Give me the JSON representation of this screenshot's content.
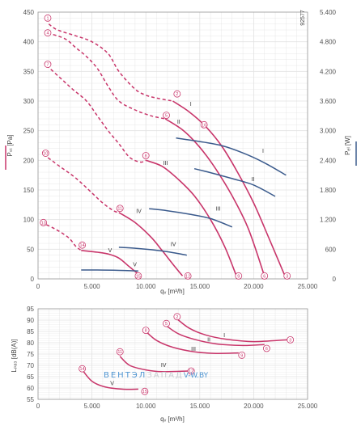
{
  "colors": {
    "pressure": "#c8356a",
    "power": "#3a5a8c",
    "grid": "#e2e2e2",
    "axis": "#999999"
  },
  "watermark": {
    "part1": "ВЕНТЭЛ",
    "part2": "ЗАПАД",
    "part3": "V-W.BY"
  },
  "chart_data": [
    {
      "type": "line",
      "code": "92577",
      "xlabel": "qᵥ [m³/h]",
      "ylabel": "Pₛₜ [Pa]",
      "y2label": "Pₑₗ [W]",
      "xlim": [
        0,
        25000
      ],
      "ylim": [
        0,
        450
      ],
      "y2lim": [
        0,
        5400
      ],
      "x_ticks": [
        0,
        5000,
        10000,
        15000,
        20000,
        25000
      ],
      "x_tick_labels": [
        "0",
        "5.000",
        "10.000",
        "15.000",
        "20.000",
        "25.000"
      ],
      "y_ticks": [
        0,
        50,
        100,
        150,
        200,
        250,
        300,
        350,
        400,
        450
      ],
      "y_tick_labels": [
        "0",
        "50",
        "100",
        "150",
        "200",
        "250",
        "300",
        "350",
        "400",
        "450"
      ],
      "y2_ticks": [
        0,
        600,
        1200,
        1800,
        2400,
        3000,
        3600,
        4200,
        4800,
        5400
      ],
      "y2_tick_labels": [
        "0",
        "600",
        "1.200",
        "1.800",
        "2.400",
        "3.000",
        "3.600",
        "4.200",
        "4.800",
        "5.400"
      ],
      "pressure_series": [
        {
          "name": "I",
          "unstable": {
            "x": [
              1000,
              1800,
              3500,
              5000,
              6500,
              7500,
              9000,
              10000,
              11000,
              12500
            ],
            "y": [
              430,
              420,
              410,
              400,
              380,
              350,
              320,
              310,
              305,
              300
            ]
          },
          "stable": {
            "x": [
              12500,
              14000,
              15500,
              17000,
              18500,
              20000,
              21500,
              22900
            ],
            "y": [
              300,
              282,
              258,
              225,
              180,
              128,
              65,
              5
            ]
          }
        },
        {
          "name": "II",
          "unstable": {
            "x": [
              900,
              2500,
              3500,
              4500,
              5500,
              6500,
              7500,
              9000,
              10500,
              11800
            ],
            "y": [
              415,
              405,
              390,
              375,
              355,
              325,
              300,
              285,
              275,
              270
            ]
          },
          "stable": {
            "x": [
              11800,
              13500,
              15000,
              16500,
              18000,
              19500,
              21000
            ],
            "y": [
              270,
              250,
              222,
              185,
              140,
              85,
              5
            ]
          }
        },
        {
          "name": "III",
          "unstable": {
            "x": [
              800,
              2000,
              3200,
              4500,
              5500,
              6500,
              7500,
              8500,
              9500,
              10000
            ],
            "y": [
              360,
              340,
              320,
              300,
              275,
              250,
              228,
              205,
              197,
              200
            ]
          },
          "stable": {
            "x": [
              10000,
              11500,
              13000,
              14500,
              16000,
              17300,
              18400
            ],
            "y": [
              200,
              190,
              168,
              140,
              100,
              55,
              5
            ]
          }
        },
        {
          "name": "IV",
          "unstable": {
            "x": [
              500,
              2000,
              3500,
              5000,
              6000,
              7000,
              7500
            ],
            "y": [
              210,
              190,
              170,
              145,
              128,
              115,
              112
            ]
          },
          "stable": {
            "x": [
              7500,
              9000,
              10500,
              11500,
              12500,
              13400
            ],
            "y": [
              112,
              95,
              70,
              48,
              25,
              5
            ]
          }
        },
        {
          "name": "V",
          "unstable": {
            "x": [
              300,
              1500,
              2800,
              3500,
              4000
            ],
            "y": [
              95,
              85,
              70,
              55,
              48
            ]
          },
          "stable": {
            "x": [
              4000,
              5500,
              6500,
              7500,
              8500,
              9500
            ],
            "y": [
              48,
              45,
              42,
              35,
              20,
              5
            ]
          }
        }
      ],
      "power_series": [
        {
          "name": "I",
          "x": [
            12800,
            15000,
            17000,
            19000,
            21000,
            23000
          ],
          "y": [
            2850,
            2780,
            2700,
            2550,
            2350,
            2100
          ]
        },
        {
          "name": "II",
          "x": [
            14500,
            16000,
            18000,
            20000,
            22000
          ],
          "y": [
            2230,
            2150,
            2030,
            1900,
            1670
          ]
        },
        {
          "name": "III",
          "x": [
            10300,
            12000,
            14000,
            16000,
            18000
          ],
          "y": [
            1420,
            1380,
            1310,
            1220,
            1050
          ]
        },
        {
          "name": "IV",
          "x": [
            7500,
            9000,
            10500,
            12000,
            13800
          ],
          "y": [
            640,
            620,
            590,
            550,
            480
          ]
        },
        {
          "name": "V",
          "x": [
            4000,
            5500,
            7000,
            8000,
            9300
          ],
          "y": [
            180,
            180,
            175,
            170,
            160
          ]
        }
      ],
      "pressure_curve_labels": [
        {
          "text": "I",
          "x": 14100,
          "y": 292
        },
        {
          "text": "II",
          "x": 12900,
          "y": 262
        },
        {
          "text": "III",
          "x": 11600,
          "y": 192
        },
        {
          "text": "IV",
          "x": 9100,
          "y": 111
        },
        {
          "text": "V",
          "x": 6500,
          "y": 45
        }
      ],
      "power_curve_labels": [
        {
          "text": "I",
          "x": 20800,
          "y": 2550
        },
        {
          "text": "II",
          "x": 19800,
          "y": 1980
        },
        {
          "text": "III",
          "x": 16500,
          "y": 1380
        },
        {
          "text": "IV",
          "x": 12300,
          "y": 660
        },
        {
          "text": "V",
          "x": 8800,
          "y": 250
        }
      ],
      "operating_points": [
        {
          "label": "1",
          "x": 900,
          "y": 440
        },
        {
          "label": "2",
          "x": 12900,
          "y": 312
        },
        {
          "label": "3",
          "x": 23100,
          "y": 5
        },
        {
          "label": "4",
          "x": 900,
          "y": 415
        },
        {
          "label": "5",
          "x": 11900,
          "y": 276
        },
        {
          "label": "6",
          "x": 21000,
          "y": 5
        },
        {
          "label": "7",
          "x": 900,
          "y": 362
        },
        {
          "label": "8",
          "x": 10000,
          "y": 208
        },
        {
          "label": "9",
          "x": 18600,
          "y": 5
        },
        {
          "label": "10",
          "x": 700,
          "y": 212
        },
        {
          "label": "11",
          "x": 7600,
          "y": 119
        },
        {
          "label": "12",
          "x": 13900,
          "y": 5
        },
        {
          "label": "13",
          "x": 500,
          "y": 95
        },
        {
          "label": "14",
          "x": 4100,
          "y": 57
        },
        {
          "label": "15",
          "x": 9300,
          "y": 5
        },
        {
          "label": "16",
          "x": 15400,
          "y": 260
        }
      ]
    },
    {
      "type": "line",
      "xlabel": "qᵥ [m³/h]",
      "ylabel": "Lₚₐ₃ [dB(A)]",
      "xlim": [
        0,
        25000
      ],
      "ylim": [
        55,
        95
      ],
      "x_ticks": [
        0,
        5000,
        10000,
        15000,
        20000,
        25000
      ],
      "x_tick_labels": [
        "0",
        "5.000",
        "10.000",
        "15.000",
        "20.000",
        "25.000"
      ],
      "y_ticks": [
        55,
        60,
        65,
        70,
        75,
        80,
        85,
        90,
        95
      ],
      "y_tick_labels": [
        "55",
        "60",
        "65",
        "70",
        "75",
        "80",
        "85",
        "90",
        "95"
      ],
      "series": [
        {
          "name": "I",
          "x": [
            12900,
            14000,
            15500,
            17500,
            20000,
            23100
          ],
          "y": [
            90.5,
            86.5,
            83.5,
            81.5,
            80.5,
            81.3
          ]
        },
        {
          "name": "II",
          "x": [
            11900,
            13000,
            14500,
            16500,
            19000,
            21000
          ],
          "y": [
            87.5,
            84,
            81.5,
            79.5,
            78.8,
            79.2
          ]
        },
        {
          "name": "III",
          "x": [
            10000,
            11000,
            12500,
            14500,
            16500,
            18600
          ],
          "y": [
            85,
            81,
            78,
            76,
            75.3,
            75.5
          ]
        },
        {
          "name": "IV",
          "x": [
            7600,
            8500,
            10000,
            11500,
            13900
          ],
          "y": [
            74,
            70,
            68,
            67.2,
            67.5
          ]
        },
        {
          "name": "V",
          "x": [
            4100,
            5000,
            6200,
            7800,
            9300
          ],
          "y": [
            68,
            63,
            60.5,
            59.5,
            59.5
          ]
        }
      ],
      "curve_labels": [
        {
          "text": "I",
          "x": 17200,
          "y": 82.5
        },
        {
          "text": "II",
          "x": 15700,
          "y": 80.5
        },
        {
          "text": "III",
          "x": 14200,
          "y": 76.5
        },
        {
          "text": "IV",
          "x": 11400,
          "y": 69.3
        },
        {
          "text": "V",
          "x": 6700,
          "y": 61.2
        }
      ],
      "points": [
        {
          "label": "2",
          "x": 12900,
          "y": 91.5
        },
        {
          "label": "3",
          "x": 23400,
          "y": 81.3
        },
        {
          "label": "5",
          "x": 11900,
          "y": 88.5
        },
        {
          "label": "6",
          "x": 21200,
          "y": 77.5
        },
        {
          "label": "8",
          "x": 10000,
          "y": 85.5
        },
        {
          "label": "9",
          "x": 18900,
          "y": 74.5
        },
        {
          "label": "11",
          "x": 7600,
          "y": 76
        },
        {
          "label": "12",
          "x": 14200,
          "y": 67.5
        },
        {
          "label": "14",
          "x": 4100,
          "y": 68.5
        },
        {
          "label": "15",
          "x": 9900,
          "y": 58.5
        }
      ]
    }
  ]
}
